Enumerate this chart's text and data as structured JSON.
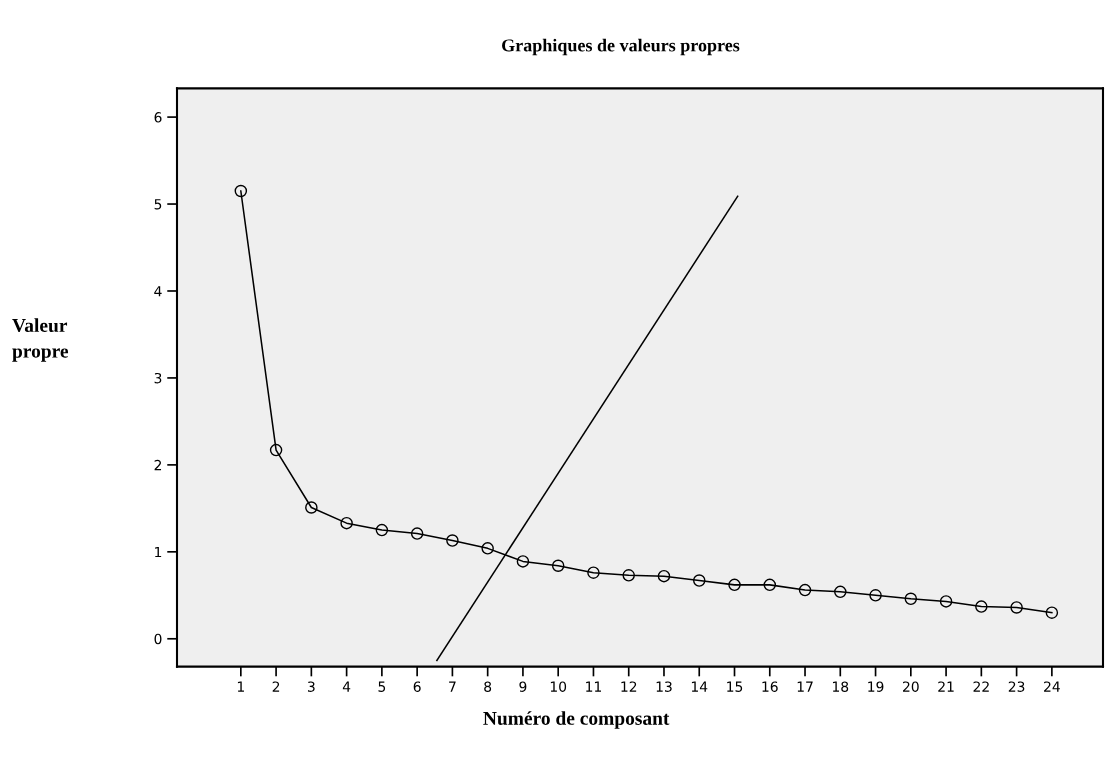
{
  "chart_data": {
    "type": "line",
    "title": "Graphiques de valeurs propres",
    "xlabel": "Numéro de composant",
    "ylabel": "Valeur\npropre",
    "xlim": [
      -0.81,
      25.45
    ],
    "ylim": [
      -0.32,
      6.33
    ],
    "xticks": [
      1,
      2,
      3,
      4,
      5,
      6,
      7,
      8,
      9,
      10,
      11,
      12,
      13,
      14,
      15,
      16,
      17,
      18,
      19,
      20,
      21,
      22,
      23,
      24
    ],
    "yticks": [
      0,
      1,
      2,
      3,
      4,
      5,
      6
    ],
    "grid": false,
    "legend": false,
    "marker": "circle",
    "line_style": "solid",
    "series": [
      {
        "color": "#000000",
        "x": [
          1,
          2,
          3,
          4,
          5,
          6,
          7,
          8,
          9,
          10,
          11,
          12,
          13,
          14,
          15,
          16,
          17,
          18,
          19,
          20,
          21,
          22,
          23,
          24
        ],
        "values": [
          5.15,
          2.17,
          1.51,
          1.33,
          1.25,
          1.21,
          1.13,
          1.04,
          0.89,
          0.84,
          0.76,
          0.73,
          0.72,
          0.67,
          0.62,
          0.62,
          0.56,
          0.54,
          0.5,
          0.46,
          0.43,
          0.37,
          0.36,
          0.3
        ]
      },
      {
        "type": "line",
        "marker": "none",
        "color": "#000000",
        "x": [
          6.56,
          15.09
        ],
        "values": [
          -0.25,
          5.09
        ]
      }
    ]
  }
}
